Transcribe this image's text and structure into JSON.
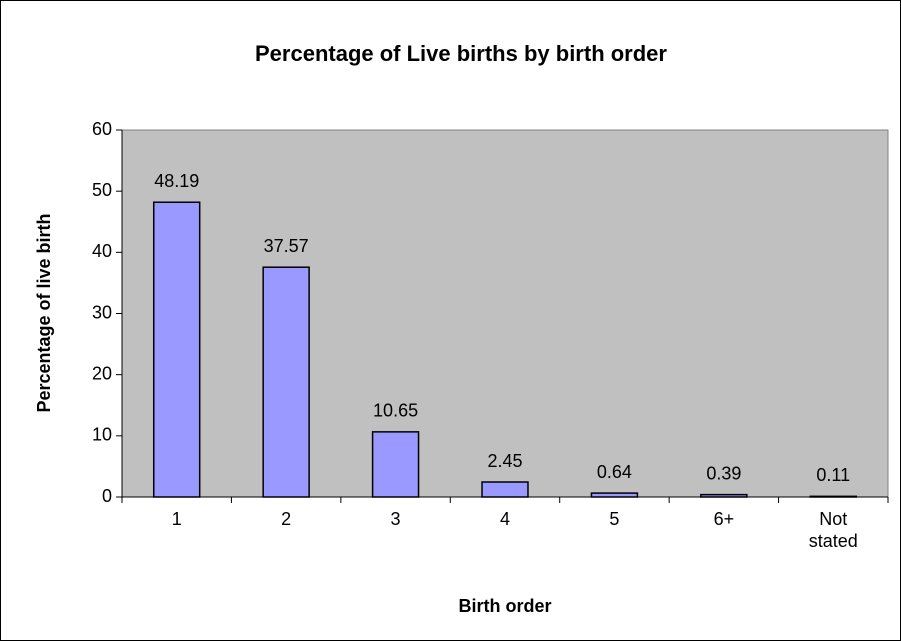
{
  "chart_data": {
    "type": "bar",
    "title": "Percentage of Live births by birth order",
    "x_label": "Birth order",
    "y_label": "Percentage of live birth",
    "categories": [
      "1",
      "2",
      "3",
      "4",
      "5",
      "6+",
      "Not stated"
    ],
    "values": [
      48.19,
      37.57,
      10.65,
      2.45,
      0.64,
      0.39,
      0.11
    ],
    "color": "#9999ff",
    "background": "#c0c0c0",
    "ylim": [
      0,
      60
    ],
    "yticks": [
      0,
      10,
      20,
      30,
      40,
      50,
      60
    ]
  }
}
